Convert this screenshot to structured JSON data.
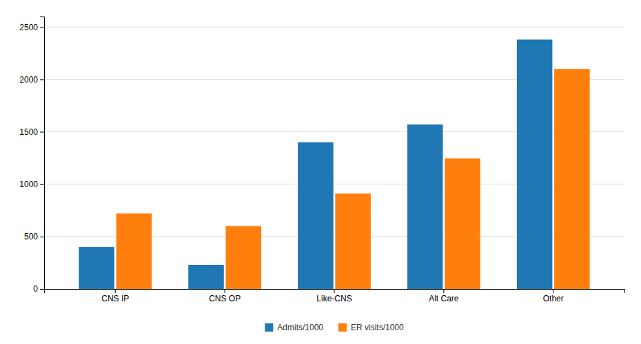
{
  "chart_data": {
    "type": "bar",
    "categories": [
      "CNS IP",
      "CNS OP",
      "Like-CNS",
      "Alt Care",
      "Other"
    ],
    "series": [
      {
        "name": "Admits/1000",
        "values": [
          400,
          230,
          1400,
          1570,
          2380
        ]
      },
      {
        "name": "ER visits/1000",
        "values": [
          720,
          600,
          910,
          1245,
          2100
        ]
      }
    ],
    "ylim": [
      0,
      2600
    ],
    "yticks": [
      0,
      500,
      1000,
      1500,
      2000,
      2500
    ],
    "grid": true,
    "legend": "bottom"
  }
}
